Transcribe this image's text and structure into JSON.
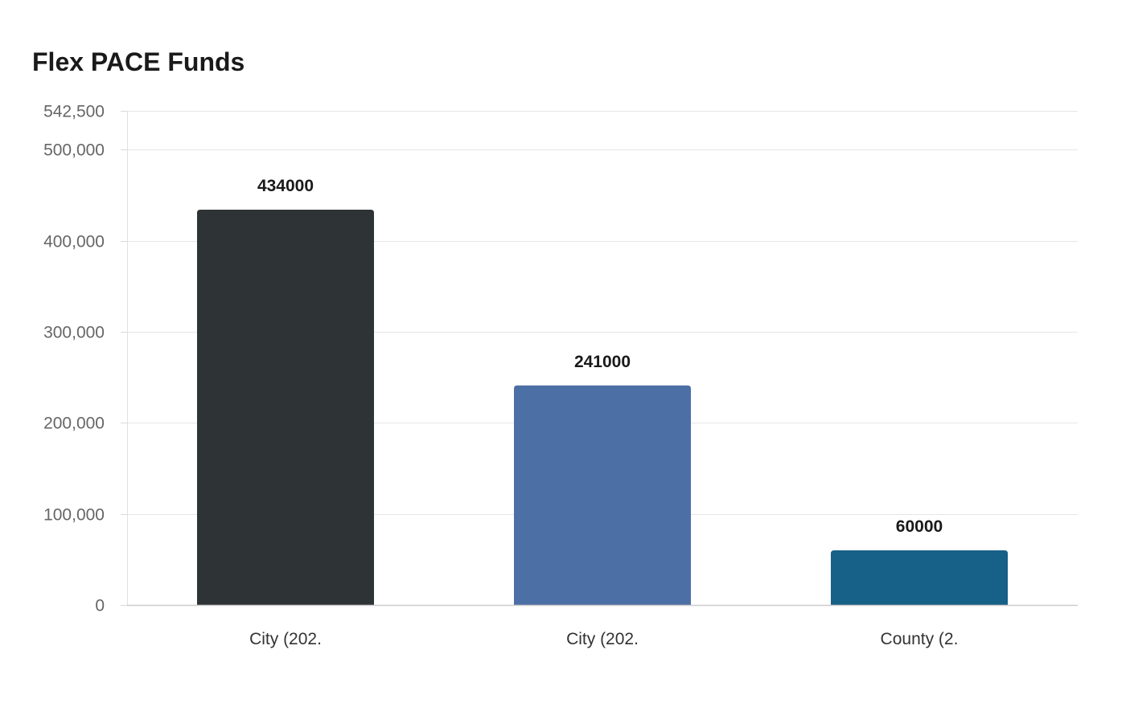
{
  "chart_data": {
    "type": "bar",
    "title": "Flex PACE Funds",
    "xlabel": "",
    "ylabel": "",
    "categories": [
      "City (202.",
      "City (202.",
      "County (2."
    ],
    "values": [
      434000,
      241000,
      60000
    ],
    "value_labels": [
      "434000",
      "241000",
      "60000"
    ],
    "bar_colors": [
      "#2e3436",
      "#4c6fa5",
      "#176087"
    ],
    "ylim": [
      0,
      542500
    ],
    "yticks": [
      0,
      100000,
      200000,
      300000,
      400000,
      500000,
      542500
    ],
    "ytick_labels": [
      "0",
      "100,000",
      "200,000",
      "300,000",
      "400,000",
      "500,000",
      "542,500"
    ],
    "grid": true,
    "legend": "none"
  }
}
